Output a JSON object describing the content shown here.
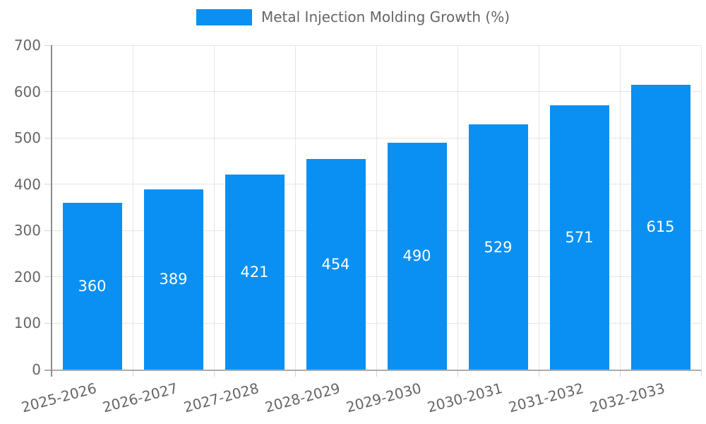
{
  "chart_data": {
    "type": "bar",
    "title": "Metal Injection Molding Growth (%)",
    "categories": [
      "2025-2026",
      "2026-2027",
      "2027-2028",
      "2028-2029",
      "2029-2030",
      "2030-2031",
      "2031-2032",
      "2032-2033"
    ],
    "series": [
      {
        "name": "Metal Injection Molding Growth (%)",
        "values": [
          360,
          389,
          421,
          454,
          490,
          529,
          571,
          615
        ]
      }
    ],
    "xlabel": "",
    "ylabel": "",
    "ylim": [
      0,
      700
    ],
    "yticks": [
      0,
      100,
      200,
      300,
      400,
      500,
      600,
      700
    ],
    "grid": true,
    "legend_position": "top",
    "xtick_rotation_deg": -15,
    "value_labels_inside_bars": true,
    "colors": {
      "bar": "#0990f2",
      "value_label": "#ffffff",
      "axis_text": "#666666",
      "gridline": "#e6e6e6",
      "tick": "#d4d4d4",
      "axis_line_bottom": "#acacac",
      "axis_line_left": "#8c8c8c",
      "background": "#ffffff"
    }
  }
}
